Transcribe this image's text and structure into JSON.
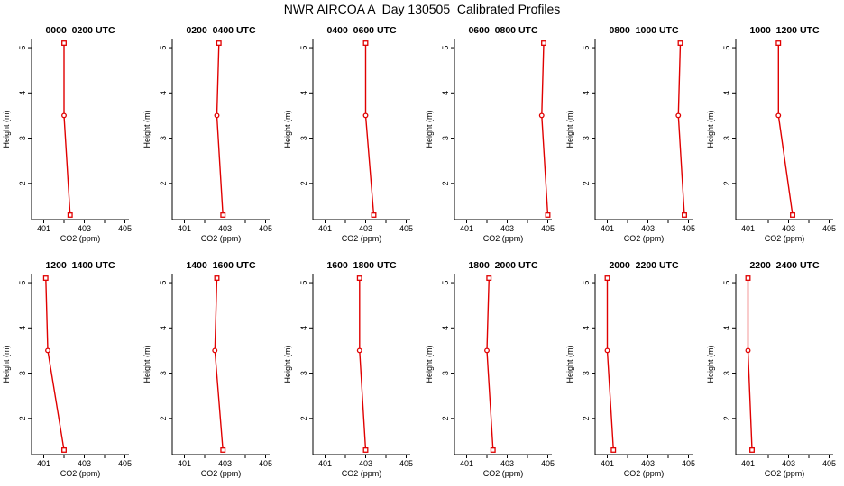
{
  "title": "NWR AIRCOA A  Day 130505  Calibrated Profiles",
  "colors": {
    "series": "#e00000",
    "axis": "#000000"
  },
  "chart_data": [
    {
      "type": "line",
      "title": "0000–0200 UTC",
      "xlabel": "CO2 (ppm)",
      "ylabel": "Height (m)",
      "xlim": [
        400.4,
        405.2
      ],
      "ylim": [
        1.2,
        5.2
      ],
      "xticks": [
        "401",
        "403",
        "405"
      ],
      "yticks": [
        "2",
        "3",
        "4",
        "5"
      ],
      "x": [
        402.3,
        402.0,
        402.0
      ],
      "y": [
        1.3,
        3.5,
        5.1
      ]
    },
    {
      "type": "line",
      "title": "0200–0400 UTC",
      "xlabel": "CO2 (ppm)",
      "ylabel": "Height (m)",
      "xlim": [
        400.4,
        405.2
      ],
      "ylim": [
        1.2,
        5.2
      ],
      "xticks": [
        "401",
        "403",
        "405"
      ],
      "yticks": [
        "2",
        "3",
        "4",
        "5"
      ],
      "x": [
        402.9,
        402.6,
        402.7
      ],
      "y": [
        1.3,
        3.5,
        5.1
      ]
    },
    {
      "type": "line",
      "title": "0400–0600 UTC",
      "xlabel": "CO2 (ppm)",
      "ylabel": "Height (m)",
      "xlim": [
        400.4,
        405.2
      ],
      "ylim": [
        1.2,
        5.2
      ],
      "xticks": [
        "401",
        "403",
        "405"
      ],
      "yticks": [
        "2",
        "3",
        "4",
        "5"
      ],
      "x": [
        403.4,
        403.0,
        403.0
      ],
      "y": [
        1.3,
        3.5,
        5.1
      ]
    },
    {
      "type": "line",
      "title": "0600–0800 UTC",
      "xlabel": "CO2 (ppm)",
      "ylabel": "Height (m)",
      "xlim": [
        400.4,
        405.2
      ],
      "ylim": [
        1.2,
        5.2
      ],
      "xticks": [
        "401",
        "403",
        "405"
      ],
      "yticks": [
        "2",
        "3",
        "4",
        "5"
      ],
      "x": [
        405.0,
        404.7,
        404.8
      ],
      "y": [
        1.3,
        3.5,
        5.1
      ]
    },
    {
      "type": "line",
      "title": "0800–1000 UTC",
      "xlabel": "CO2 (ppm)",
      "ylabel": "Height (m)",
      "xlim": [
        400.4,
        405.2
      ],
      "ylim": [
        1.2,
        5.2
      ],
      "xticks": [
        "401",
        "403",
        "405"
      ],
      "yticks": [
        "2",
        "3",
        "4",
        "5"
      ],
      "x": [
        404.8,
        404.5,
        404.6
      ],
      "y": [
        1.3,
        3.5,
        5.1
      ]
    },
    {
      "type": "line",
      "title": "1000–1200 UTC",
      "xlabel": "CO2 (ppm)",
      "ylabel": "Height (m)",
      "xlim": [
        400.4,
        405.2
      ],
      "ylim": [
        1.2,
        5.2
      ],
      "xticks": [
        "401",
        "403",
        "405"
      ],
      "yticks": [
        "2",
        "3",
        "4",
        "5"
      ],
      "x": [
        403.2,
        402.5,
        402.5
      ],
      "y": [
        1.3,
        3.5,
        5.1
      ]
    },
    {
      "type": "line",
      "title": "1200–1400 UTC",
      "xlabel": "CO2 (ppm)",
      "ylabel": "Height (m)",
      "xlim": [
        400.4,
        405.2
      ],
      "ylim": [
        1.2,
        5.2
      ],
      "xticks": [
        "401",
        "403",
        "405"
      ],
      "yticks": [
        "2",
        "3",
        "4",
        "5"
      ],
      "x": [
        402.0,
        401.2,
        401.1
      ],
      "y": [
        1.3,
        3.5,
        5.1
      ]
    },
    {
      "type": "line",
      "title": "1400–1600 UTC",
      "xlabel": "CO2 (ppm)",
      "ylabel": "Height (m)",
      "xlim": [
        400.4,
        405.2
      ],
      "ylim": [
        1.2,
        5.2
      ],
      "xticks": [
        "401",
        "403",
        "405"
      ],
      "yticks": [
        "2",
        "3",
        "4",
        "5"
      ],
      "x": [
        402.9,
        402.5,
        402.6
      ],
      "y": [
        1.3,
        3.5,
        5.1
      ]
    },
    {
      "type": "line",
      "title": "1600–1800 UTC",
      "xlabel": "CO2 (ppm)",
      "ylabel": "Height (m)",
      "xlim": [
        400.4,
        405.2
      ],
      "ylim": [
        1.2,
        5.2
      ],
      "xticks": [
        "401",
        "403",
        "405"
      ],
      "yticks": [
        "2",
        "3",
        "4",
        "5"
      ],
      "x": [
        403.0,
        402.7,
        402.7
      ],
      "y": [
        1.3,
        3.5,
        5.1
      ]
    },
    {
      "type": "line",
      "title": "1800–2000 UTC",
      "xlabel": "CO2 (ppm)",
      "ylabel": "Height (m)",
      "xlim": [
        400.4,
        405.2
      ],
      "ylim": [
        1.2,
        5.2
      ],
      "xticks": [
        "401",
        "403",
        "405"
      ],
      "yticks": [
        "2",
        "3",
        "4",
        "5"
      ],
      "x": [
        402.3,
        402.0,
        402.1
      ],
      "y": [
        1.3,
        3.5,
        5.1
      ]
    },
    {
      "type": "line",
      "title": "2000–2200 UTC",
      "xlabel": "CO2 (ppm)",
      "ylabel": "Height (m)",
      "xlim": [
        400.4,
        405.2
      ],
      "ylim": [
        1.2,
        5.2
      ],
      "xticks": [
        "401",
        "403",
        "405"
      ],
      "yticks": [
        "2",
        "3",
        "4",
        "5"
      ],
      "x": [
        401.3,
        401.0,
        401.0
      ],
      "y": [
        1.3,
        3.5,
        5.1
      ]
    },
    {
      "type": "line",
      "title": "2200–2400 UTC",
      "xlabel": "CO2 (ppm)",
      "ylabel": "Height (m)",
      "xlim": [
        400.4,
        405.2
      ],
      "ylim": [
        1.2,
        5.2
      ],
      "xticks": [
        "401",
        "403",
        "405"
      ],
      "yticks": [
        "2",
        "3",
        "4",
        "5"
      ],
      "x": [
        401.2,
        401.0,
        401.0
      ],
      "y": [
        1.3,
        3.5,
        5.1
      ]
    }
  ]
}
